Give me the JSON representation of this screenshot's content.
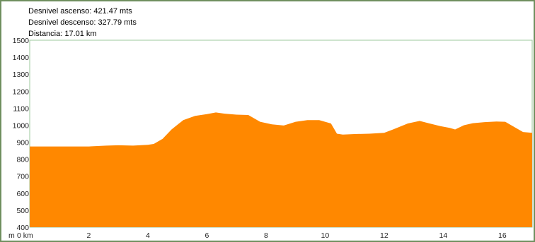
{
  "stats": {
    "ascent": "Desnivel ascenso: 421.47 mts",
    "descent": "Desnivel descenso: 327.79 mts",
    "distance": "Distancia: 17.01 km"
  },
  "chart_data": {
    "type": "area",
    "title": "",
    "xlabel": "",
    "ylabel": "",
    "y_unit_label": "m",
    "x_tick_labels": [
      "0 km",
      "2",
      "4",
      "6",
      "8",
      "10",
      "12",
      "14",
      "16"
    ],
    "x_ticks": [
      0,
      2,
      4,
      6,
      8,
      10,
      12,
      14,
      16
    ],
    "y_ticks": [
      400,
      500,
      600,
      700,
      800,
      900,
      1000,
      1100,
      1200,
      1300,
      1400,
      1500
    ],
    "xlim": [
      0,
      17.01
    ],
    "ylim": [
      400,
      1500
    ],
    "grid": false,
    "color": "#ff8800",
    "series": [
      {
        "x": [
          0,
          1,
          2,
          2.6,
          3,
          3.5,
          4,
          4.2,
          4.5,
          4.8,
          5.2,
          5.6,
          6,
          6.3,
          6.6,
          7,
          7.4,
          7.8,
          8.2,
          8.6,
          9,
          9.4,
          9.8,
          10.2,
          10.4,
          10.6,
          11,
          11.5,
          12,
          12.3,
          12.8,
          13.2,
          13.5,
          13.9,
          14.2,
          14.4,
          14.7,
          15,
          15.4,
          15.8,
          16.1,
          16.4,
          16.7,
          17.01
        ],
        "y": [
          875,
          875,
          875,
          880,
          882,
          880,
          885,
          890,
          920,
          975,
          1030,
          1055,
          1065,
          1075,
          1068,
          1062,
          1060,
          1020,
          1005,
          998,
          1020,
          1030,
          1030,
          1010,
          950,
          945,
          948,
          950,
          955,
          975,
          1010,
          1025,
          1012,
          995,
          985,
          975,
          1000,
          1012,
          1018,
          1022,
          1020,
          990,
          960,
          955
        ]
      }
    ]
  }
}
